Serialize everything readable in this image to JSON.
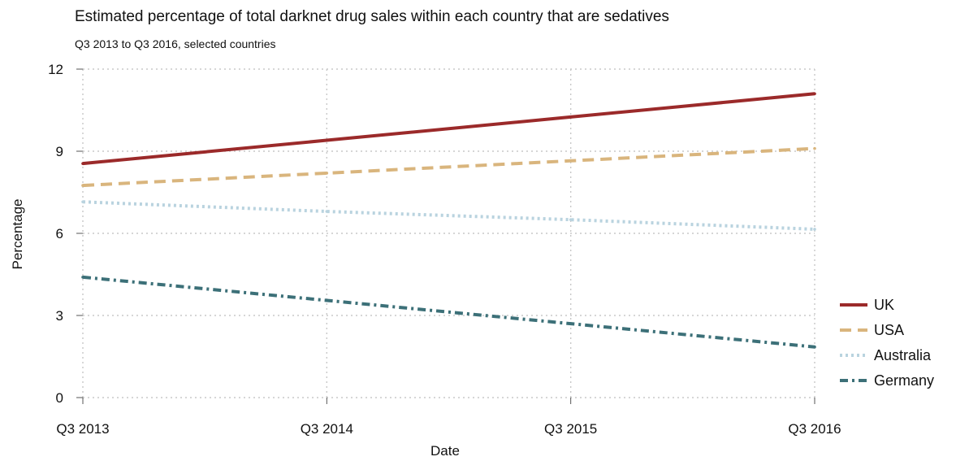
{
  "title": "Estimated percentage of total darknet drug sales within each country that are sedatives",
  "subtitle": "Q3 2013 to Q3 2016, selected countries",
  "chart_data": {
    "type": "line",
    "title": "Estimated percentage of total darknet drug sales within each country that are sedatives",
    "subtitle": "Q3 2013 to Q3 2016, selected countries",
    "xlabel": "Date",
    "ylabel": "Percentage",
    "x": [
      "Q3 2013",
      "Q3 2014",
      "Q3 2015",
      "Q3 2016"
    ],
    "x_ticks": [
      "Q3 2013",
      "Q3 2014",
      "Q3 2015",
      "Q3 2016"
    ],
    "y_ticks": [
      0,
      3,
      6,
      9,
      12
    ],
    "ylim": [
      0,
      12
    ],
    "grid": true,
    "legend_position": "right",
    "series": [
      {
        "name": "UK",
        "values": [
          8.55,
          9.4,
          10.25,
          11.1
        ],
        "color": "#9b2a2a",
        "style": "solid"
      },
      {
        "name": "USA",
        "values": [
          7.75,
          8.2,
          8.65,
          9.1
        ],
        "color": "#d9b57d",
        "style": "dashed"
      },
      {
        "name": "Australia",
        "values": [
          7.15,
          6.8,
          6.5,
          6.15
        ],
        "color": "#b9d3df",
        "style": "dotted"
      },
      {
        "name": "Germany",
        "values": [
          4.4,
          3.55,
          2.7,
          1.85
        ],
        "color": "#3c7078",
        "style": "dashdot"
      }
    ]
  }
}
